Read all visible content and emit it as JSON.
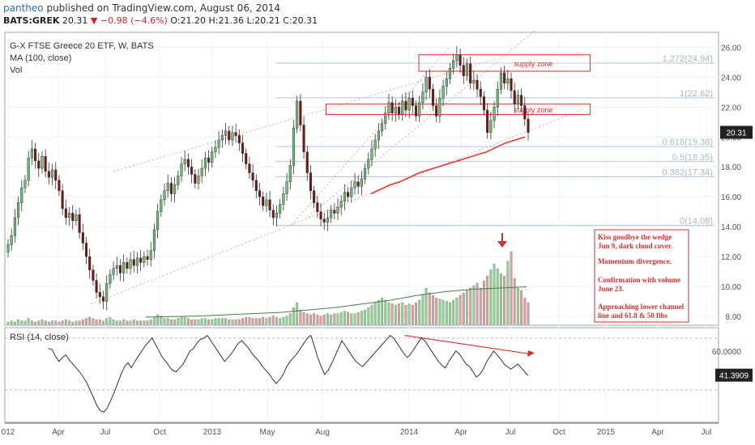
{
  "header": {
    "user": "pantheo",
    "published_text": "published on TradingView.com, August 06, 2014",
    "symbol": "BATS:GREK",
    "last": "20.31",
    "change": "−0.98 (−4.6%)",
    "open": "O:21.20",
    "high": "H:21.36",
    "low": "L:20.21",
    "close": "C:20.31"
  },
  "legend": {
    "title": "G-X FTSE Greece 20 ETF, W, BATS",
    "ma": "MA (100, close)",
    "vol": "Vol",
    "rsi": "RSI (14, close)"
  },
  "colors": {
    "up": "#6fbf73",
    "down": "#c62828",
    "vol_up": "#8fd18f",
    "vol_down": "#d9a0a0",
    "annotation": "#d32f2f",
    "fib": "#b0c4de",
    "last_badge": "#222222"
  },
  "chart_data": [
    {
      "type": "candlestick",
      "title": "G-X FTSE Greece 20 ETF, W, BATS",
      "x_ticks": [
        "012",
        "Apr",
        "Jul",
        "Oct",
        "2013",
        "May",
        "Aug",
        "2014",
        "Apr",
        "Jul",
        "Oct",
        "2015",
        "Apr",
        "Jul"
      ],
      "y_ticks": [
        "26.00",
        "24.00",
        "22.00",
        "20.00",
        "18.00",
        "16.00",
        "14.00",
        "12.00",
        "10.00",
        "8.00"
      ],
      "ylim": [
        7.4,
        27.0
      ],
      "last_value": "20.31",
      "fib_levels": [
        {
          "label": "1.272(24.94)",
          "value": 24.94
        },
        {
          "label": "1(22.62)",
          "value": 22.62
        },
        {
          "label": "0.618(19.36)",
          "value": 19.36
        },
        {
          "label": "0.5(18.35)",
          "value": 18.35
        },
        {
          "label": "0.382(17.34)",
          "value": 17.34
        },
        {
          "label": "0(14.08)",
          "value": 14.08
        }
      ],
      "zones": [
        {
          "label": "supply zone",
          "top": 25.5,
          "bottom": 24.4,
          "x_start": 0.58,
          "x_end": 0.82
        },
        {
          "label": "supply zone",
          "top": 22.2,
          "bottom": 21.5,
          "x_start": 0.45,
          "x_end": 0.82
        }
      ],
      "weekly_closes": [
        12.8,
        13.4,
        14.6,
        15.6,
        16.6,
        17.1,
        18.6,
        19.2,
        18.4,
        17.9,
        18.7,
        17.7,
        17.3,
        17.8,
        17.1,
        16.4,
        15.2,
        14.6,
        14.9,
        14.4,
        14.8,
        13.6,
        12.9,
        12.0,
        11.1,
        10.4,
        9.6,
        9.3,
        9.0,
        10.2,
        10.8,
        11.2,
        11.4,
        10.9,
        11.6,
        11.2,
        11.8,
        11.4,
        11.9,
        11.6,
        12.0,
        11.8,
        12.4,
        13.8,
        15.0,
        15.8,
        16.4,
        16.9,
        16.2,
        16.8,
        17.4,
        18.2,
        18.5,
        18.0,
        17.5,
        16.9,
        17.4,
        17.9,
        18.6,
        18.3,
        19.0,
        19.3,
        19.8,
        20.1,
        20.4,
        19.8,
        20.3,
        20.1,
        19.6,
        18.9,
        18.2,
        17.6,
        17.1,
        16.4,
        16.0,
        15.4,
        15.8,
        15.1,
        14.6,
        14.9,
        15.5,
        16.2,
        17.0,
        18.1,
        20.6,
        22.4,
        20.8,
        19.0,
        17.6,
        16.4,
        15.6,
        15.0,
        14.5,
        14.3,
        14.6,
        15.1,
        14.9,
        15.3,
        15.7,
        16.3,
        16.0,
        16.6,
        17.0,
        16.7,
        17.2,
        17.9,
        18.5,
        19.2,
        19.8,
        20.4,
        20.9,
        21.6,
        22.3,
        21.6,
        22.0,
        21.5,
        22.4,
        21.8,
        22.6,
        22.1,
        21.4,
        22.3,
        23.0,
        24.0,
        23.2,
        22.1,
        21.4,
        22.6,
        23.4,
        23.9,
        24.6,
        25.1,
        25.5,
        24.8,
        24.1,
        24.9,
        23.6,
        23.8,
        23.2,
        22.7,
        21.8,
        20.3,
        21.1,
        22.0,
        23.2,
        24.3,
        23.6,
        23.9,
        23.1,
        22.2,
        22.8,
        22.1,
        21.2,
        20.3
      ],
      "ma_100": [
        16.2,
        16.5,
        16.8,
        17.0,
        17.3,
        17.6,
        17.8,
        18.0,
        18.2,
        18.4,
        18.6,
        18.8,
        19.0,
        19.3,
        19.6,
        19.8,
        20.0
      ],
      "annotations": [
        "Kiss goodbye the wedge",
        "Jun 9, dark cloud cover.",
        "Momentum divergence.",
        "Confirmation with volume",
        "June 23.",
        "Approaching lower channel",
        "line and 61.8 & 50 fibs"
      ]
    },
    {
      "type": "bar",
      "title": "Vol",
      "volume": [
        2,
        3,
        2,
        4,
        3,
        3,
        5,
        3,
        2,
        3,
        4,
        3,
        2,
        3,
        3,
        2,
        3,
        4,
        3,
        2,
        3,
        3,
        4,
        5,
        6,
        5,
        4,
        4,
        3,
        5,
        6,
        4,
        3,
        3,
        4,
        3,
        3,
        4,
        3,
        3,
        3,
        3,
        4,
        6,
        8,
        7,
        5,
        5,
        4,
        4,
        5,
        6,
        6,
        5,
        4,
        4,
        4,
        5,
        5,
        4,
        4,
        5,
        5,
        5,
        5,
        4,
        4,
        4,
        4,
        5,
        6,
        6,
        5,
        5,
        5,
        6,
        5,
        6,
        7,
        6,
        5,
        6,
        7,
        9,
        14,
        18,
        12,
        10,
        9,
        8,
        9,
        8,
        7,
        8,
        9,
        8,
        9,
        9,
        10,
        11,
        10,
        9,
        9,
        10,
        11,
        12,
        14,
        16,
        18,
        20,
        22,
        20,
        18,
        17,
        16,
        17,
        18,
        16,
        17,
        16,
        18,
        20,
        25,
        30,
        26,
        24,
        22,
        21,
        20,
        19,
        18,
        20,
        22,
        24,
        26,
        28,
        30,
        32,
        34,
        30,
        36,
        40,
        45,
        50,
        46,
        42,
        40,
        52,
        60,
        38,
        30,
        28,
        22,
        18
      ],
      "vol_ma": [
        6,
        6.5,
        7,
        8,
        9,
        10,
        12,
        14,
        17,
        20,
        24,
        27,
        29,
        30,
        31
      ]
    },
    {
      "type": "line",
      "title": "RSI (14, close)",
      "y_ticks": [
        "60.0000"
      ],
      "last_value": "41.3909",
      "rsi": [
        62,
        61,
        56,
        52,
        55,
        57,
        53,
        50,
        47,
        44,
        40,
        36,
        30,
        24,
        18,
        14,
        13,
        16,
        22,
        28,
        35,
        42,
        48,
        51,
        47,
        52,
        56,
        60,
        64,
        67,
        70,
        65,
        60,
        55,
        52,
        48,
        45,
        44,
        47,
        50,
        55,
        60,
        62,
        66,
        69,
        70,
        72,
        68,
        64,
        60,
        56,
        52,
        55,
        58,
        62,
        66,
        68,
        65,
        62,
        58,
        55,
        52,
        48,
        45,
        42,
        38,
        35,
        38,
        42,
        48,
        52,
        55,
        58,
        62,
        66,
        70,
        72,
        64,
        55,
        48,
        42,
        45,
        50,
        56,
        62,
        68,
        64,
        60,
        56,
        52,
        50,
        48,
        51,
        54,
        57,
        60,
        63,
        66,
        69,
        72,
        70,
        66,
        62,
        58,
        55,
        58,
        62,
        66,
        70,
        68,
        64,
        60,
        56,
        52,
        49,
        47,
        52,
        56,
        60,
        58,
        54,
        50,
        48,
        44,
        40,
        42,
        46,
        52,
        56,
        60,
        57,
        54,
        50,
        48,
        46,
        48,
        50,
        47,
        44,
        41
      ]
    }
  ]
}
